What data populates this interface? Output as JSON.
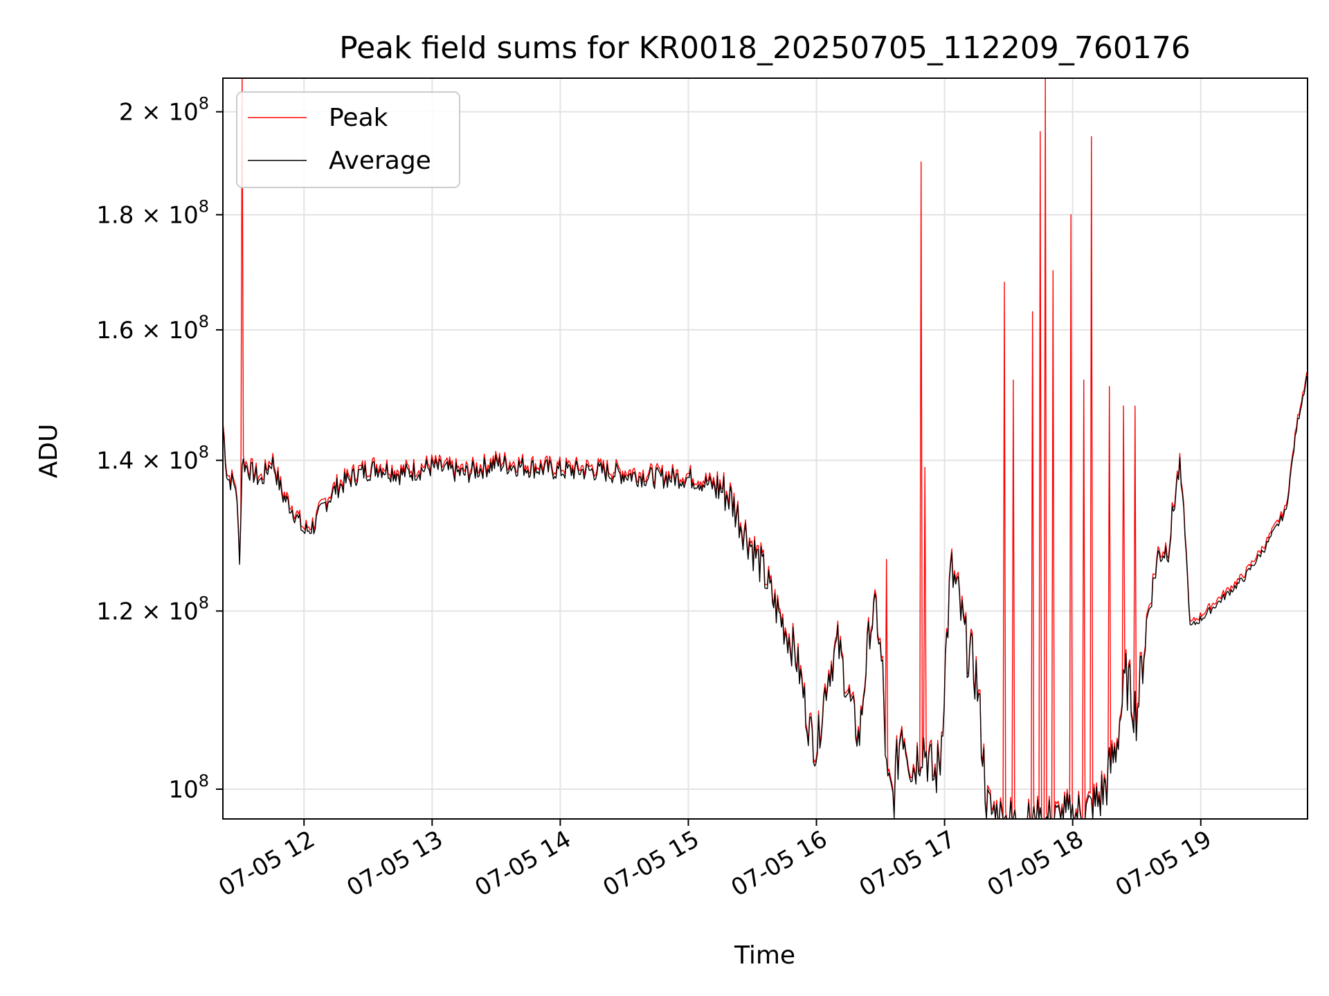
{
  "chart_data": {
    "type": "line",
    "title": "Peak field sums for KR0018_20250705_112209_760176",
    "xlabel": "Time",
    "ylabel": "ADU",
    "y_scale": "log",
    "x_axis": "datetime",
    "xlim": [
      "2025-07-05 11:22",
      "2025-07-05 19:50"
    ],
    "ylim": [
      97000000,
      207000000
    ],
    "grid": true,
    "legend_position": "upper left",
    "x_ticks": [
      {
        "t": "2025-07-05 12:00",
        "label": "07-05 12"
      },
      {
        "t": "2025-07-05 13:00",
        "label": "07-05 13"
      },
      {
        "t": "2025-07-05 14:00",
        "label": "07-05 14"
      },
      {
        "t": "2025-07-05 15:00",
        "label": "07-05 15"
      },
      {
        "t": "2025-07-05 16:00",
        "label": "07-05 16"
      },
      {
        "t": "2025-07-05 17:00",
        "label": "07-05 17"
      },
      {
        "t": "2025-07-05 18:00",
        "label": "07-05 18"
      },
      {
        "t": "2025-07-05 19:00",
        "label": "07-05 19"
      }
    ],
    "y_ticks": [
      {
        "value": 100000000,
        "mantissa": "",
        "exp": "8"
      },
      {
        "value": 120000000,
        "mantissa": "1.2",
        "exp": "8"
      },
      {
        "value": 140000000,
        "mantissa": "1.4",
        "exp": "8"
      },
      {
        "value": 160000000,
        "mantissa": "1.6",
        "exp": "8"
      },
      {
        "value": 180000000,
        "mantissa": "1.8",
        "exp": "8"
      },
      {
        "value": 200000000,
        "mantissa": "2",
        "exp": "8"
      }
    ],
    "series": [
      {
        "name": "Average",
        "color": "#000000",
        "x": [
          "2025-07-05 11:22",
          "2025-07-05 11:24",
          "2025-07-05 11:28",
          "2025-07-05 11:30",
          "2025-07-05 11:31",
          "2025-07-05 11:33",
          "2025-07-05 11:40",
          "2025-07-05 11:45",
          "2025-07-05 11:50",
          "2025-07-05 11:55",
          "2025-07-05 12:00",
          "2025-07-05 12:05",
          "2025-07-05 12:10",
          "2025-07-05 12:15",
          "2025-07-05 12:25",
          "2025-07-05 12:35",
          "2025-07-05 12:45",
          "2025-07-05 13:00",
          "2025-07-05 13:15",
          "2025-07-05 13:30",
          "2025-07-05 13:45",
          "2025-07-05 14:00",
          "2025-07-05 14:15",
          "2025-07-05 14:30",
          "2025-07-05 14:45",
          "2025-07-05 15:00",
          "2025-07-05 15:10",
          "2025-07-05 15:15",
          "2025-07-05 15:20",
          "2025-07-05 15:25",
          "2025-07-05 15:30",
          "2025-07-05 15:35",
          "2025-07-05 15:40",
          "2025-07-05 15:45",
          "2025-07-05 15:50",
          "2025-07-05 15:53",
          "2025-07-05 15:56",
          "2025-07-05 16:00",
          "2025-07-05 16:05",
          "2025-07-05 16:10",
          "2025-07-05 16:15",
          "2025-07-05 16:20",
          "2025-07-05 16:25",
          "2025-07-05 16:28",
          "2025-07-05 16:31",
          "2025-07-05 16:33",
          "2025-07-05 16:36",
          "2025-07-05 16:40",
          "2025-07-05 16:45",
          "2025-07-05 16:50",
          "2025-07-05 16:55",
          "2025-07-05 16:58",
          "2025-07-05 17:00",
          "2025-07-05 17:03",
          "2025-07-05 17:06",
          "2025-07-05 17:10",
          "2025-07-05 17:15",
          "2025-07-05 17:20",
          "2025-07-05 17:25",
          "2025-07-05 17:30",
          "2025-07-05 17:40",
          "2025-07-05 17:50",
          "2025-07-05 18:00",
          "2025-07-05 18:10",
          "2025-07-05 18:15",
          "2025-07-05 18:20",
          "2025-07-05 18:25",
          "2025-07-05 18:30",
          "2025-07-05 18:35",
          "2025-07-05 18:40",
          "2025-07-05 18:45",
          "2025-07-05 18:48",
          "2025-07-05 18:50",
          "2025-07-05 18:52",
          "2025-07-05 18:55",
          "2025-07-05 19:00",
          "2025-07-05 19:10",
          "2025-07-05 19:20",
          "2025-07-05 19:30",
          "2025-07-05 19:40",
          "2025-07-05 19:45",
          "2025-07-05 19:50"
        ],
        "y": [
          145000000,
          137500000,
          136500000,
          126000000,
          140000000,
          139000000,
          137000000,
          140000000,
          135000000,
          133000000,
          130000000,
          131000000,
          134000000,
          136000000,
          138000000,
          139000000,
          138000000,
          139000000,
          138000000,
          139500000,
          139000000,
          138500000,
          138500000,
          138000000,
          137500000,
          137500000,
          136500000,
          136000000,
          134500000,
          131000000,
          128000000,
          125000000,
          121000000,
          118000000,
          115000000,
          111500000,
          107000000,
          104000000,
          112000000,
          116000000,
          110000000,
          105000000,
          118000000,
          120000000,
          112000000,
          100000000,
          99000000,
          107000000,
          102000000,
          105000000,
          101000000,
          103000000,
          112000000,
          125000000,
          122000000,
          116000000,
          112000000,
          98000000,
          97000000,
          96500000,
          96000000,
          96500000,
          97000000,
          98000000,
          100000000,
          104000000,
          112000000,
          108000000,
          119000000,
          127000000,
          128000000,
          135000000,
          139000000,
          133000000,
          118000000,
          119000000,
          121500000,
          124000000,
          128000000,
          133000000,
          145000000,
          153000000
        ]
      },
      {
        "name": "Peak",
        "color": "#ff0000",
        "spikes": [
          {
            "t": "2025-07-05 11:31",
            "y": 207000000
          },
          {
            "t": "2025-07-05 16:33",
            "y": 126500000
          },
          {
            "t": "2025-07-05 16:49",
            "y": 190000000
          },
          {
            "t": "2025-07-05 16:51",
            "y": 139000000
          },
          {
            "t": "2025-07-05 17:28",
            "y": 168000000
          },
          {
            "t": "2025-07-05 17:32",
            "y": 152000000
          },
          {
            "t": "2025-07-05 17:41",
            "y": 163000000
          },
          {
            "t": "2025-07-05 17:45",
            "y": 196000000
          },
          {
            "t": "2025-07-05 17:47",
            "y": 207000000
          },
          {
            "t": "2025-07-05 17:51",
            "y": 170000000
          },
          {
            "t": "2025-07-05 17:59",
            "y": 180000000
          },
          {
            "t": "2025-07-05 18:05",
            "y": 152000000
          },
          {
            "t": "2025-07-05 18:09",
            "y": 195000000
          },
          {
            "t": "2025-07-05 18:17",
            "y": 151000000
          },
          {
            "t": "2025-07-05 18:24",
            "y": 148000000
          },
          {
            "t": "2025-07-05 18:29",
            "y": 148000000
          }
        ]
      }
    ]
  }
}
